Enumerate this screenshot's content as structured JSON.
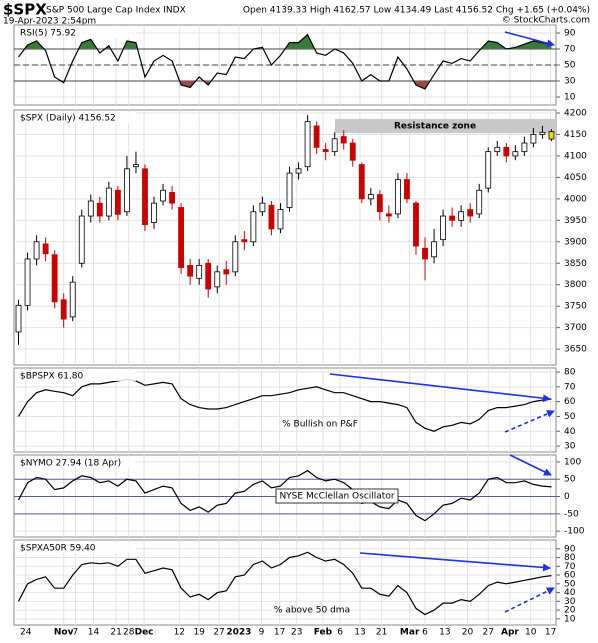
{
  "header": {
    "symbol": "$SPX",
    "name": "S&P 500 Large Cap Index INDX",
    "timestamp": "19-Apr-2023 2:54pm",
    "quote": "Open 4139.33 High 4162.57 Low 4134.49 Last 4156.52 Chg +1.65 (+0.04%)",
    "credit": "© StockCharts.com"
  },
  "x_axis": {
    "xlim": [
      -0.5,
      59.5
    ],
    "xticks": [
      {
        "value": 0.8,
        "label": "24"
      },
      {
        "value": 5,
        "label": "Nov"
      },
      {
        "value": 6.3,
        "label": "7"
      },
      {
        "value": 8.3,
        "label": "14"
      },
      {
        "value": 10.8,
        "label": "21"
      },
      {
        "value": 12.2,
        "label": "28"
      },
      {
        "value": 13.9,
        "label": "Dec"
      },
      {
        "value": 17.8,
        "label": "12"
      },
      {
        "value": 20,
        "label": "19"
      },
      {
        "value": 22.2,
        "label": "27"
      },
      {
        "value": 24.4,
        "label": "2023"
      },
      {
        "value": 26.9,
        "label": "9"
      },
      {
        "value": 28.9,
        "label": "17"
      },
      {
        "value": 30.8,
        "label": "23"
      },
      {
        "value": 33.7,
        "label": "Feb"
      },
      {
        "value": 35.6,
        "label": "6"
      },
      {
        "value": 37.8,
        "label": "13"
      },
      {
        "value": 40.2,
        "label": "21"
      },
      {
        "value": 43.3,
        "label": "Mar"
      },
      {
        "value": 45,
        "label": "6"
      },
      {
        "value": 47.2,
        "label": "13"
      },
      {
        "value": 49.7,
        "label": "20"
      },
      {
        "value": 52,
        "label": "27"
      },
      {
        "value": 54.4,
        "label": "Apr"
      },
      {
        "value": 56.7,
        "label": "10"
      },
      {
        "value": 58.9,
        "label": "17"
      }
    ]
  },
  "chart_data": [
    {
      "type": "line",
      "title": "RSI(5) 75.92",
      "color": "#000000",
      "ylim": [
        0,
        100
      ],
      "yticks": [
        10,
        30,
        50,
        70,
        90
      ],
      "reference_lines": [
        30,
        50,
        70
      ],
      "overbought_color": "#3a7a3a",
      "oversold_color": "#9a4a4a",
      "values": [
        60,
        75,
        80,
        68,
        35,
        28,
        55,
        78,
        82,
        65,
        74,
        55,
        80,
        78,
        35,
        55,
        62,
        55,
        25,
        22,
        35,
        25,
        40,
        38,
        60,
        58,
        70,
        72,
        50,
        62,
        78,
        78,
        88,
        65,
        62,
        70,
        65,
        52,
        30,
        38,
        30,
        30,
        60,
        45,
        25,
        20,
        38,
        55,
        52,
        58,
        55,
        68,
        80,
        78,
        70,
        72,
        76,
        80,
        78,
        75.92
      ]
    },
    {
      "type": "candlestick",
      "title": "$SPX (Daily) 4156.52",
      "up_color": "#000000",
      "down_color": "#cc0000",
      "ylim": [
        3613,
        4207
      ],
      "yticks": [
        3650,
        3700,
        3750,
        3800,
        3850,
        3900,
        3950,
        4000,
        4050,
        4100,
        4150,
        4200
      ],
      "resistance_zone": {
        "label": "Resistance zone",
        "range": [
          4153,
          4186
        ],
        "color": "#c8c8c8"
      },
      "open": [
        3690,
        3752,
        3860,
        3895,
        3870,
        3765,
        3725,
        3850,
        3960,
        3990,
        3960,
        4020,
        3970,
        4075,
        4070,
        3945,
        3995,
        4015,
        3980,
        3845,
        3815,
        3850,
        3795,
        3835,
        3830,
        3905,
        3900,
        3970,
        3985,
        3930,
        3980,
        4060,
        4075,
        4170,
        4115,
        4110,
        4145,
        4130,
        4080,
        4000,
        4010,
        3965,
        3965,
        4045,
        3990,
        3885,
        3865,
        3905,
        3960,
        3950,
        3975,
        3965,
        4025,
        4110,
        4120,
        4100,
        4110,
        4130,
        4150,
        4139.33
      ],
      "high": [
        3765,
        3875,
        3915,
        3910,
        3880,
        3780,
        3820,
        3975,
        4010,
        4005,
        4040,
        4030,
        4100,
        4110,
        4080,
        4005,
        4035,
        4030,
        3990,
        3860,
        3860,
        3860,
        3845,
        3855,
        3915,
        3925,
        3985,
        4005,
        3995,
        3990,
        4075,
        4085,
        4195,
        4180,
        4130,
        4155,
        4160,
        4140,
        4085,
        4025,
        4020,
        3985,
        4060,
        4060,
        3995,
        3910,
        3930,
        3975,
        3980,
        3985,
        3990,
        4035,
        4120,
        4135,
        4130,
        4125,
        4145,
        4165,
        4170,
        4162.57
      ],
      "low": [
        3660,
        3740,
        3845,
        3855,
        3745,
        3700,
        3715,
        3840,
        3945,
        3945,
        3950,
        3950,
        3960,
        4060,
        3925,
        3930,
        3985,
        3975,
        3825,
        3800,
        3800,
        3770,
        3780,
        3800,
        3820,
        3880,
        3890,
        3960,
        3915,
        3920,
        3970,
        4045,
        4065,
        4105,
        4090,
        4100,
        4115,
        4075,
        3990,
        3985,
        3950,
        3945,
        3955,
        3990,
        3870,
        3810,
        3850,
        3890,
        3935,
        3935,
        3945,
        3955,
        4015,
        4100,
        4085,
        4090,
        4100,
        4120,
        4140,
        4134.49
      ],
      "close": [
        3752,
        3860,
        3900,
        3872,
        3760,
        3720,
        3806,
        3960,
        3995,
        3960,
        4025,
        3964,
        4070,
        4080,
        3940,
        3990,
        4020,
        3990,
        3840,
        3820,
        3845,
        3790,
        3830,
        3825,
        3900,
        3900,
        3970,
        3990,
        3930,
        3975,
        4060,
        4070,
        4180,
        4120,
        4110,
        4140,
        4130,
        4090,
        4000,
        4010,
        3970,
        3960,
        4045,
        4000,
        3890,
        3860,
        3900,
        3960,
        3950,
        3970,
        3960,
        4020,
        4110,
        4120,
        4100,
        4110,
        4130,
        4150,
        4155,
        4156.52
      ]
    },
    {
      "type": "line",
      "title": "$BPSPX 61.80",
      "annotation": "% Bullish on P&F",
      "color": "#000000",
      "ylim": [
        26,
        82.7
      ],
      "yticks": [
        30,
        40,
        50,
        60,
        70,
        80
      ],
      "values": [
        50,
        60,
        66,
        68,
        67,
        66,
        64,
        70,
        72,
        72,
        73,
        74,
        75,
        74,
        71,
        72,
        73,
        72,
        62,
        58,
        56,
        55,
        55,
        56,
        58,
        60,
        62,
        64,
        64,
        65,
        66,
        68,
        69,
        70,
        68,
        66,
        66,
        64,
        62,
        60,
        60,
        59,
        58,
        56,
        46,
        42,
        40,
        43,
        44,
        46,
        45,
        48,
        54,
        56,
        56,
        57,
        58,
        60,
        61,
        61.8
      ]
    },
    {
      "type": "line",
      "title": "$NYMO 27.94 (18 Apr)",
      "annotation": "NYSE McClellan Oscillator",
      "color": "#000000",
      "ylim": [
        -117,
        120
      ],
      "yticks": [
        -100,
        -50,
        0,
        50,
        100
      ],
      "reference_lines": [
        -50,
        0,
        50
      ],
      "reference_color": "#5a5aa0",
      "values": [
        -10,
        40,
        55,
        50,
        20,
        25,
        45,
        60,
        55,
        40,
        45,
        30,
        50,
        45,
        10,
        20,
        30,
        25,
        -20,
        -40,
        -30,
        -45,
        -25,
        -20,
        10,
        15,
        35,
        45,
        25,
        30,
        55,
        60,
        75,
        55,
        45,
        50,
        40,
        20,
        -20,
        -15,
        -30,
        -35,
        -10,
        -20,
        -55,
        -70,
        -50,
        -25,
        -20,
        -5,
        -10,
        10,
        50,
        55,
        40,
        40,
        45,
        35,
        30,
        27.94
      ]
    },
    {
      "type": "line",
      "title": "$SPXA50R 59.40",
      "annotation": "% above 50 dma",
      "color": "#000000",
      "ylim": [
        3,
        100
      ],
      "yticks": [
        10,
        20,
        30,
        40,
        50,
        60,
        70,
        80,
        90
      ],
      "values": [
        30,
        50,
        55,
        58,
        45,
        45,
        60,
        72,
        74,
        73,
        74,
        70,
        78,
        78,
        62,
        65,
        68,
        66,
        45,
        35,
        38,
        32,
        40,
        42,
        58,
        60,
        72,
        76,
        68,
        72,
        80,
        82,
        86,
        80,
        76,
        78,
        72,
        62,
        45,
        45,
        38,
        36,
        48,
        40,
        22,
        15,
        20,
        28,
        28,
        32,
        30,
        38,
        48,
        52,
        50,
        52,
        54,
        56,
        58,
        59.4
      ]
    }
  ]
}
